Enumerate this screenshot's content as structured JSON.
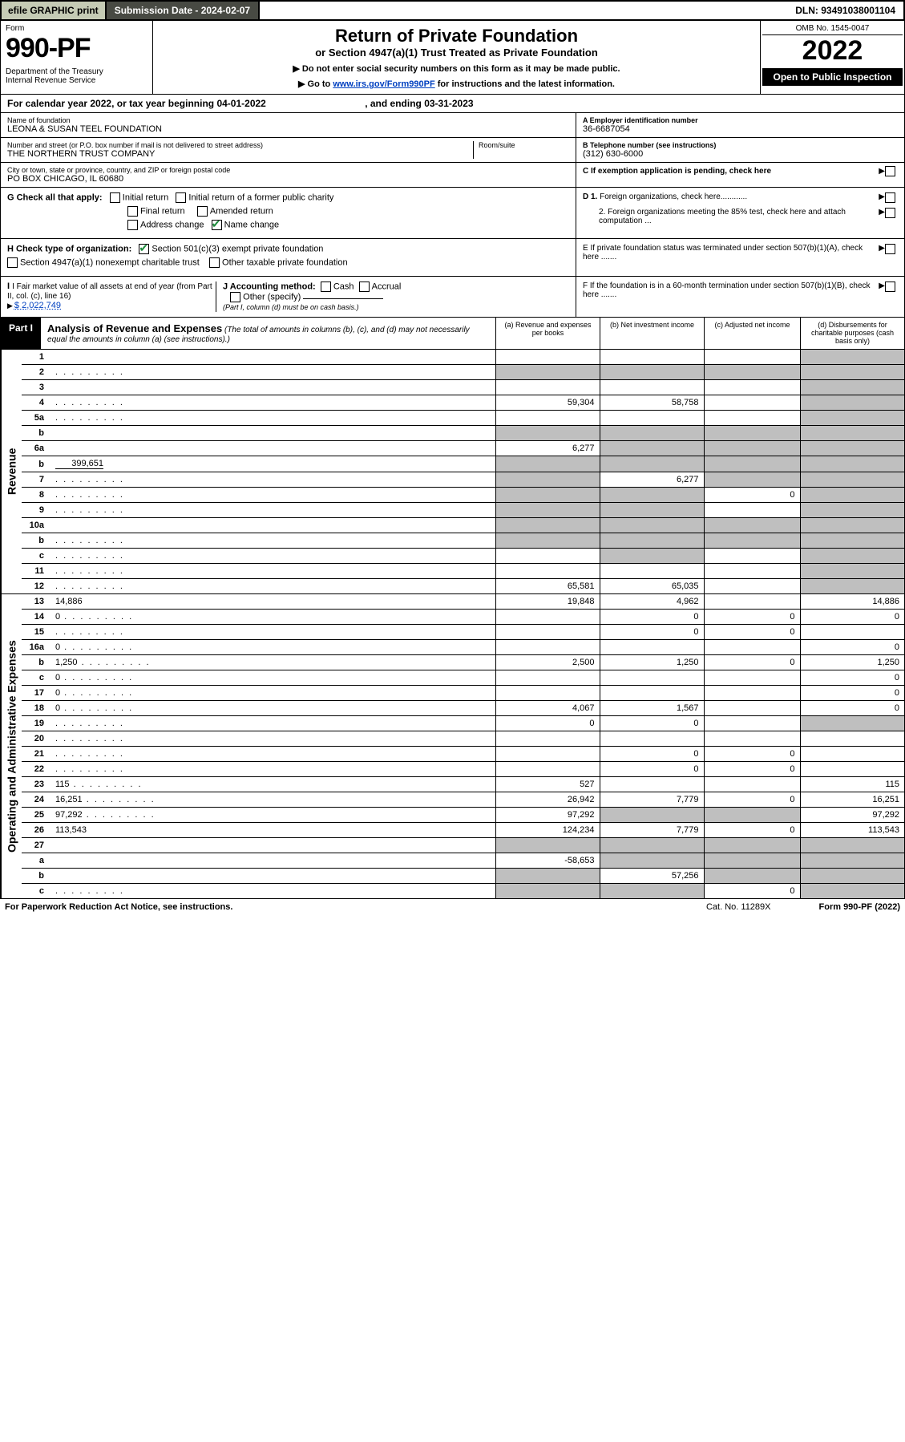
{
  "topbar": {
    "efile": "efile GRAPHIC print",
    "subdate": "Submission Date - 2024-02-07",
    "dln": "DLN: 93491038001104"
  },
  "header": {
    "form_label": "Form",
    "form_number": "990-PF",
    "dept": "Department of the Treasury\nInternal Revenue Service",
    "title": "Return of Private Foundation",
    "subtitle1": "or Section 4947(a)(1) Trust Treated as Private Foundation",
    "subtitle2a": "▶ Do not enter social security numbers on this form as it may be made public.",
    "subtitle2b_pre": "▶ Go to ",
    "subtitle2b_link": "www.irs.gov/Form990PF",
    "subtitle2b_post": " for instructions and the latest information.",
    "omb": "OMB No. 1545-0047",
    "year": "2022",
    "open": "Open to Public Inspection"
  },
  "caly": {
    "prefix": "For calendar year 2022, or tax year beginning ",
    "begin": "04-01-2022",
    "mid": ", and ending ",
    "end": "03-31-2023"
  },
  "entity": {
    "name_lbl": "Name of foundation",
    "name": "LEONA & SUSAN TEEL FOUNDATION",
    "addr_lbl": "Number and street (or P.O. box number if mail is not delivered to street address)",
    "addr": "THE NORTHERN TRUST COMPANY",
    "room_lbl": "Room/suite",
    "city_lbl": "City or town, state or province, country, and ZIP or foreign postal code",
    "city": "PO BOX CHICAGO, IL  60680",
    "ein_lbl": "A Employer identification number",
    "ein": "36-6687054",
    "phone_lbl": "B Telephone number (see instructions)",
    "phone": "(312) 630-6000",
    "c_lbl": "C If exemption application is pending, check here"
  },
  "boxes": {
    "g_lbl": "G Check all that apply:",
    "g_items": [
      "Initial return",
      "Initial return of a former public charity",
      "Final return",
      "Amended return",
      "Address change",
      "Name change"
    ],
    "h_lbl": "H Check type of organization:",
    "h1": "Section 501(c)(3) exempt private foundation",
    "h2": "Section 4947(a)(1) nonexempt charitable trust",
    "h3": "Other taxable private foundation",
    "i_lbl": "I Fair market value of all assets at end of year (from Part II, col. (c), line 16)",
    "i_val": "$  2,022,749",
    "j_lbl": "J Accounting method:",
    "j_cash": "Cash",
    "j_acc": "Accrual",
    "j_other": "Other (specify)",
    "j_note": "(Part I, column (d) must be on cash basis.)",
    "d1": "D 1. Foreign organizations, check here............",
    "d2": "2. Foreign organizations meeting the 85% test, check here and attach computation ...",
    "e": "E  If private foundation status was terminated under section 507(b)(1)(A), check here .......",
    "f": "F  If the foundation is in a 60-month termination under section 507(b)(1)(B), check here .......",
    "arrow": "▶"
  },
  "part1": {
    "tag": "Part I",
    "title": "Analysis of Revenue and Expenses",
    "note": " (The total of amounts in columns (b), (c), and (d) may not necessarily equal the amounts in column (a) (see instructions).)",
    "cols": {
      "a": "(a)  Revenue and expenses per books",
      "b": "(b)  Net investment income",
      "c": "(c)  Adjusted net income",
      "d": "(d)  Disbursements for charitable purposes (cash basis only)"
    }
  },
  "sections": {
    "revenue": "Revenue",
    "expenses": "Operating and Administrative Expenses"
  },
  "rows": [
    {
      "n": "1",
      "d": "",
      "a": "",
      "b": "",
      "c": "",
      "grey": [
        "d"
      ]
    },
    {
      "n": "2",
      "d": "",
      "dots": true,
      "a": "",
      "b": "",
      "c": "",
      "grey": [
        "a",
        "b",
        "c",
        "d"
      ]
    },
    {
      "n": "3",
      "d": "",
      "a": "",
      "b": "",
      "c": "",
      "grey": [
        "d"
      ]
    },
    {
      "n": "4",
      "d": "",
      "dots": true,
      "a": "59,304",
      "b": "58,758",
      "c": "",
      "grey": [
        "d"
      ]
    },
    {
      "n": "5a",
      "d": "",
      "dots": true,
      "a": "",
      "b": "",
      "c": "",
      "grey": [
        "d"
      ]
    },
    {
      "n": "b",
      "d": "",
      "a": "",
      "b": "",
      "c": "",
      "grey": [
        "a",
        "b",
        "c",
        "d"
      ]
    },
    {
      "n": "6a",
      "d": "",
      "a": "6,277",
      "b": "",
      "c": "",
      "grey": [
        "b",
        "c",
        "d"
      ]
    },
    {
      "n": "b",
      "d": "",
      "inline": "399,651",
      "a": "",
      "b": "",
      "c": "",
      "grey": [
        "a",
        "b",
        "c",
        "d"
      ]
    },
    {
      "n": "7",
      "d": "",
      "dots": true,
      "a": "",
      "b": "6,277",
      "c": "",
      "grey": [
        "a",
        "c",
        "d"
      ]
    },
    {
      "n": "8",
      "d": "",
      "dots": true,
      "a": "",
      "b": "",
      "c": "0",
      "grey": [
        "a",
        "b",
        "d"
      ]
    },
    {
      "n": "9",
      "d": "",
      "dots": true,
      "a": "",
      "b": "",
      "c": "",
      "grey": [
        "a",
        "b",
        "d"
      ]
    },
    {
      "n": "10a",
      "d": "",
      "a": "",
      "b": "",
      "c": "",
      "grey": [
        "a",
        "b",
        "c",
        "d"
      ]
    },
    {
      "n": "b",
      "d": "",
      "dots": true,
      "a": "",
      "b": "",
      "c": "",
      "grey": [
        "a",
        "b",
        "c",
        "d"
      ]
    },
    {
      "n": "c",
      "d": "",
      "dots": true,
      "a": "",
      "b": "",
      "c": "",
      "grey": [
        "b",
        "d"
      ]
    },
    {
      "n": "11",
      "d": "",
      "dots": true,
      "a": "",
      "b": "",
      "c": "",
      "grey": [
        "d"
      ]
    },
    {
      "n": "12",
      "d": "",
      "dots": true,
      "a": "65,581",
      "b": "65,035",
      "c": "",
      "grey": [
        "d"
      ]
    }
  ],
  "rows2": [
    {
      "n": "13",
      "d": "14,886",
      "a": "19,848",
      "b": "4,962",
      "c": ""
    },
    {
      "n": "14",
      "d": "0",
      "dots": true,
      "a": "",
      "b": "0",
      "c": "0"
    },
    {
      "n": "15",
      "d": "",
      "dots": true,
      "a": "",
      "b": "0",
      "c": "0"
    },
    {
      "n": "16a",
      "d": "0",
      "dots": true,
      "a": "",
      "b": "",
      "c": ""
    },
    {
      "n": "b",
      "d": "1,250",
      "dots": true,
      "a": "2,500",
      "b": "1,250",
      "c": "0"
    },
    {
      "n": "c",
      "d": "0",
      "dots": true,
      "a": "",
      "b": "",
      "c": ""
    },
    {
      "n": "17",
      "d": "0",
      "dots": true,
      "a": "",
      "b": "",
      "c": ""
    },
    {
      "n": "18",
      "d": "0",
      "dots": true,
      "a": "4,067",
      "b": "1,567",
      "c": ""
    },
    {
      "n": "19",
      "d": "",
      "dots": true,
      "a": "0",
      "b": "0",
      "c": "",
      "grey": [
        "d"
      ]
    },
    {
      "n": "20",
      "d": "",
      "dots": true,
      "a": "",
      "b": "",
      "c": ""
    },
    {
      "n": "21",
      "d": "",
      "dots": true,
      "a": "",
      "b": "0",
      "c": "0"
    },
    {
      "n": "22",
      "d": "",
      "dots": true,
      "a": "",
      "b": "0",
      "c": "0"
    },
    {
      "n": "23",
      "d": "115",
      "dots": true,
      "a": "527",
      "b": "",
      "c": ""
    },
    {
      "n": "24",
      "d": "16,251",
      "dots": true,
      "a": "26,942",
      "b": "7,779",
      "c": "0"
    },
    {
      "n": "25",
      "d": "97,292",
      "dots": true,
      "a": "97,292",
      "b": "",
      "c": "",
      "grey": [
        "b",
        "c"
      ]
    },
    {
      "n": "26",
      "d": "113,543",
      "a": "124,234",
      "b": "7,779",
      "c": "0"
    },
    {
      "n": "27",
      "d": "",
      "a": "",
      "b": "",
      "c": "",
      "grey": [
        "a",
        "b",
        "c",
        "d"
      ]
    },
    {
      "n": "a",
      "d": "",
      "a": "-58,653",
      "b": "",
      "c": "",
      "grey": [
        "b",
        "c",
        "d"
      ]
    },
    {
      "n": "b",
      "d": "",
      "a": "",
      "b": "57,256",
      "c": "",
      "grey": [
        "a",
        "c",
        "d"
      ]
    },
    {
      "n": "c",
      "d": "",
      "dots": true,
      "a": "",
      "b": "",
      "c": "0",
      "grey": [
        "a",
        "b",
        "d"
      ]
    }
  ],
  "footer": {
    "pra": "For Paperwork Reduction Act Notice, see instructions.",
    "cat": "Cat. No. 11289X",
    "form": "Form 990-PF (2022)"
  },
  "colors": {
    "efile_bg": "#c5cbb5",
    "dark_bg": "#484a43",
    "green_check": "#1b8a3a",
    "grey_cell": "#bfbfbf",
    "link": "#0040c0"
  }
}
